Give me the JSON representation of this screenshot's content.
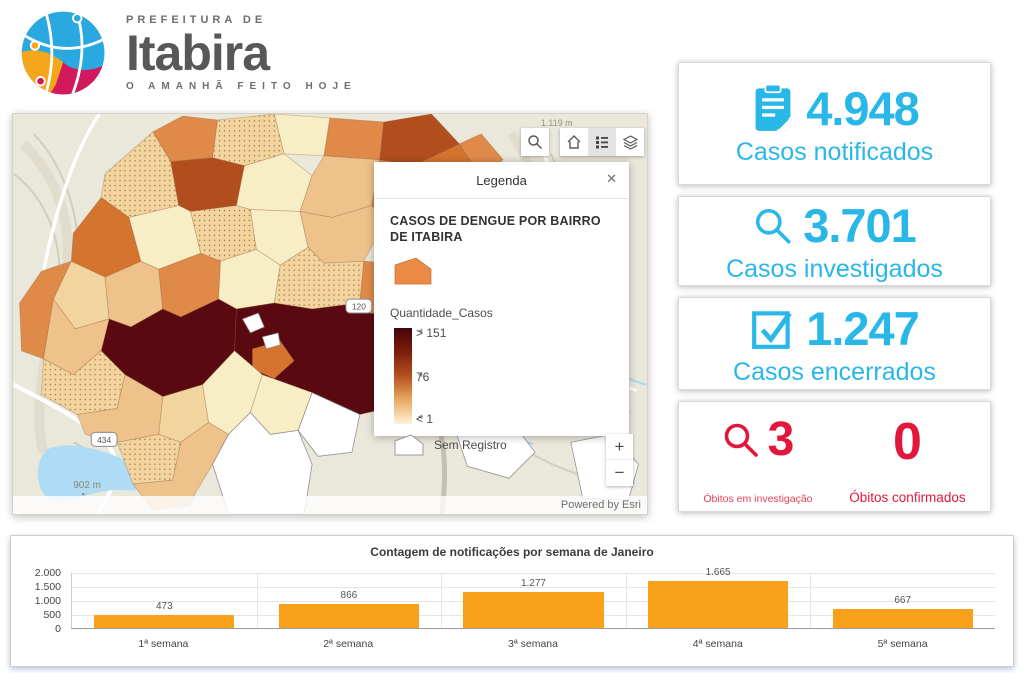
{
  "logo": {
    "top_line": "PREFEITURA DE",
    "city": "Itabira",
    "tagline": "O AMANHÃ FEITO HOJE",
    "globe_colors": {
      "blue": "#2aa9e0",
      "yellow": "#f5a71b",
      "pink": "#d2195e"
    }
  },
  "map_panel": {
    "legend": {
      "header": "Legenda",
      "close": "✕",
      "layer_title": "CASOS DE DENGUE POR BAIRRO DE ITABIRA",
      "field_name": "Quantidade_Casos",
      "ramp_max": "> 151",
      "ramp_mid": "76",
      "ramp_min": "< 1",
      "no_data": "Sem Registro",
      "swatch_color": "#ea8a45",
      "ramp_colors": [
        "#46040b",
        "#7c1d0b",
        "#b5511f",
        "#e9a963",
        "#fdf5d8"
      ]
    },
    "labels": {
      "elevation_top": "1.119 m",
      "elevation_bottom": "902 m",
      "route_west": "434",
      "route_east": "120"
    },
    "zoom_in": "+",
    "zoom_out": "−",
    "attribution": "Powered by Esri"
  },
  "stats": {
    "accent_color": "#29b7e8",
    "alert_color": "#e3173c",
    "cards": [
      {
        "icon": "clipboard-icon",
        "value": "4.948",
        "label": "Casos notificados"
      },
      {
        "icon": "magnifier-icon",
        "value": "3.701",
        "label": "Casos investigados"
      },
      {
        "icon": "checkbox-icon",
        "value": "1.247",
        "label": "Casos encerrados"
      }
    ],
    "deaths": {
      "investigating": {
        "icon": "magnifier-icon",
        "value": "3",
        "label": "Óbitos em investigação"
      },
      "confirmed": {
        "value": "0",
        "label": "Óbitos confirmados"
      }
    }
  },
  "chart_data": {
    "type": "bar",
    "title": "Contagem de notificações por semana de Janeiro",
    "categories": [
      "1ª semana",
      "2ª semana",
      "3ª semana",
      "4ª semana",
      "5ª semana"
    ],
    "values": [
      473,
      866,
      1277,
      1665,
      667
    ],
    "value_labels": [
      "473",
      "866",
      "1.277",
      "1.665",
      "667"
    ],
    "y_ticks": [
      2000,
      1500,
      1000,
      500,
      0
    ],
    "y_tick_labels": [
      "2.000",
      "1.500",
      "1.000",
      "500",
      "0"
    ],
    "ylim": [
      0,
      2000
    ],
    "xlabel": "",
    "ylabel": "",
    "grid": true,
    "legend_position": "none",
    "bar_color": "#f9a11b"
  }
}
